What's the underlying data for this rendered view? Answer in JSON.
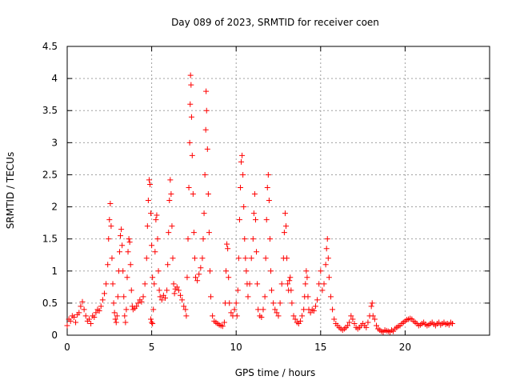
{
  "chart_data": {
    "type": "scatter",
    "title": "Day 089 of 2023, SRMTID for receiver coen",
    "xlabel": "GPS time / hours",
    "ylabel": "SRMTID / TECUs",
    "xlim": [
      0,
      25
    ],
    "ylim": [
      0,
      4.5
    ],
    "xticks": [
      0,
      5,
      10,
      15,
      20
    ],
    "yticks": [
      0,
      0.5,
      1,
      1.5,
      2,
      2.5,
      3,
      3.5,
      4,
      4.5
    ],
    "xtick_labels": [
      "0",
      "5",
      "10",
      "15",
      "20"
    ],
    "ytick_labels": [
      "0",
      "0.5",
      "1",
      "1.5",
      "2",
      "2.5",
      "3",
      "3.5",
      "4",
      "4.5"
    ],
    "grid": true,
    "marker": "+",
    "color": "#ff0000",
    "series": [
      {
        "name": "SRMTID",
        "points": [
          [
            0.0,
            0.15
          ],
          [
            0.1,
            0.25
          ],
          [
            0.2,
            0.22
          ],
          [
            0.3,
            0.3
          ],
          [
            0.4,
            0.28
          ],
          [
            0.5,
            0.2
          ],
          [
            0.6,
            0.32
          ],
          [
            0.7,
            0.35
          ],
          [
            0.8,
            0.45
          ],
          [
            0.9,
            0.52
          ],
          [
            1.0,
            0.4
          ],
          [
            1.1,
            0.3
          ],
          [
            1.2,
            0.22
          ],
          [
            1.3,
            0.25
          ],
          [
            1.4,
            0.18
          ],
          [
            1.5,
            0.3
          ],
          [
            1.6,
            0.28
          ],
          [
            1.7,
            0.35
          ],
          [
            1.8,
            0.4
          ],
          [
            1.9,
            0.38
          ],
          [
            2.0,
            0.45
          ],
          [
            2.1,
            0.55
          ],
          [
            2.2,
            0.65
          ],
          [
            2.3,
            0.8
          ],
          [
            2.4,
            1.1
          ],
          [
            2.45,
            1.5
          ],
          [
            2.5,
            1.8
          ],
          [
            2.55,
            2.05
          ],
          [
            2.6,
            1.7
          ],
          [
            2.65,
            1.2
          ],
          [
            2.7,
            0.8
          ],
          [
            2.75,
            0.5
          ],
          [
            2.8,
            0.35
          ],
          [
            2.85,
            0.25
          ],
          [
            2.9,
            0.2
          ],
          [
            2.95,
            0.3
          ],
          [
            3.0,
            0.6
          ],
          [
            3.05,
            1.0
          ],
          [
            3.1,
            1.3
          ],
          [
            3.15,
            1.55
          ],
          [
            3.2,
            1.65
          ],
          [
            3.25,
            1.4
          ],
          [
            3.3,
            1.0
          ],
          [
            3.35,
            0.6
          ],
          [
            3.4,
            0.3
          ],
          [
            3.45,
            0.2
          ],
          [
            3.5,
            0.4
          ],
          [
            3.55,
            0.9
          ],
          [
            3.6,
            1.3
          ],
          [
            3.65,
            1.5
          ],
          [
            3.7,
            1.45
          ],
          [
            3.75,
            1.1
          ],
          [
            3.8,
            0.7
          ],
          [
            3.85,
            0.45
          ],
          [
            3.9,
            0.4
          ],
          [
            4.0,
            0.42
          ],
          [
            4.1,
            0.45
          ],
          [
            4.2,
            0.5
          ],
          [
            4.3,
            0.55
          ],
          [
            4.4,
            0.52
          ],
          [
            4.5,
            0.6
          ],
          [
            4.6,
            0.8
          ],
          [
            4.7,
            1.2
          ],
          [
            4.75,
            1.7
          ],
          [
            4.8,
            2.1
          ],
          [
            4.85,
            2.42
          ],
          [
            4.9,
            2.35
          ],
          [
            4.95,
            1.9
          ],
          [
            5.0,
            1.4
          ],
          [
            5.05,
            0.9
          ],
          [
            5.1,
            0.4
          ],
          [
            4.95,
            0.25
          ],
          [
            5.0,
            0.2
          ],
          [
            5.05,
            0.18
          ],
          [
            5.15,
            0.8
          ],
          [
            5.2,
            1.3
          ],
          [
            5.25,
            1.8
          ],
          [
            5.3,
            1.87
          ],
          [
            5.35,
            1.5
          ],
          [
            5.4,
            1.0
          ],
          [
            5.45,
            0.7
          ],
          [
            5.5,
            0.6
          ],
          [
            5.6,
            0.55
          ],
          [
            5.7,
            0.62
          ],
          [
            5.8,
            0.58
          ],
          [
            5.9,
            0.7
          ],
          [
            5.95,
            1.1
          ],
          [
            6.0,
            1.6
          ],
          [
            6.05,
            2.1
          ],
          [
            6.1,
            2.42
          ],
          [
            6.15,
            2.2
          ],
          [
            6.2,
            1.7
          ],
          [
            6.25,
            1.2
          ],
          [
            6.3,
            0.8
          ],
          [
            6.35,
            0.65
          ],
          [
            6.4,
            0.72
          ],
          [
            6.5,
            0.75
          ],
          [
            6.6,
            0.7
          ],
          [
            6.7,
            0.62
          ],
          [
            6.8,
            0.55
          ],
          [
            6.9,
            0.45
          ],
          [
            7.0,
            0.4
          ],
          [
            7.05,
            0.3
          ],
          [
            7.1,
            0.9
          ],
          [
            7.15,
            1.5
          ],
          [
            7.2,
            2.3
          ],
          [
            7.25,
            3.0
          ],
          [
            7.28,
            3.6
          ],
          [
            7.3,
            4.05
          ],
          [
            7.33,
            3.9
          ],
          [
            7.36,
            3.4
          ],
          [
            7.4,
            2.8
          ],
          [
            7.45,
            2.2
          ],
          [
            7.5,
            1.6
          ],
          [
            7.55,
            1.2
          ],
          [
            7.6,
            0.9
          ],
          [
            7.7,
            0.85
          ],
          [
            7.8,
            0.95
          ],
          [
            7.9,
            1.05
          ],
          [
            8.0,
            1.2
          ],
          [
            8.05,
            1.5
          ],
          [
            8.1,
            1.9
          ],
          [
            8.15,
            2.5
          ],
          [
            8.2,
            3.2
          ],
          [
            8.22,
            3.8
          ],
          [
            8.25,
            3.5
          ],
          [
            8.3,
            2.9
          ],
          [
            8.35,
            2.2
          ],
          [
            8.4,
            1.6
          ],
          [
            8.45,
            1.0
          ],
          [
            8.5,
            0.6
          ],
          [
            8.6,
            0.3
          ],
          [
            8.7,
            0.22
          ],
          [
            8.8,
            0.2
          ],
          [
            8.9,
            0.18
          ],
          [
            9.0,
            0.16
          ],
          [
            9.1,
            0.15
          ],
          [
            9.2,
            0.14
          ],
          [
            9.3,
            0.2
          ],
          [
            9.35,
            0.5
          ],
          [
            9.4,
            1.0
          ],
          [
            9.45,
            1.42
          ],
          [
            9.5,
            1.35
          ],
          [
            9.55,
            0.9
          ],
          [
            9.6,
            0.5
          ],
          [
            9.7,
            0.35
          ],
          [
            9.8,
            0.3
          ],
          [
            9.9,
            0.4
          ],
          [
            10.0,
            0.5
          ],
          [
            10.05,
            0.3
          ],
          [
            10.1,
            0.7
          ],
          [
            10.15,
            1.2
          ],
          [
            10.2,
            1.8
          ],
          [
            10.25,
            2.3
          ],
          [
            10.3,
            2.7
          ],
          [
            10.35,
            2.8
          ],
          [
            10.4,
            2.5
          ],
          [
            10.45,
            2.0
          ],
          [
            10.5,
            1.5
          ],
          [
            10.55,
            1.2
          ],
          [
            10.6,
            1.0
          ],
          [
            10.65,
            0.8
          ],
          [
            10.7,
            0.6
          ],
          [
            10.8,
            0.8
          ],
          [
            10.9,
            1.2
          ],
          [
            11.0,
            1.5
          ],
          [
            11.05,
            1.9
          ],
          [
            11.1,
            2.2
          ],
          [
            11.15,
            1.8
          ],
          [
            11.2,
            1.3
          ],
          [
            11.25,
            0.8
          ],
          [
            11.3,
            0.4
          ],
          [
            11.4,
            0.3
          ],
          [
            11.5,
            0.28
          ],
          [
            11.6,
            0.4
          ],
          [
            11.7,
            0.6
          ],
          [
            11.75,
            1.2
          ],
          [
            11.8,
            1.8
          ],
          [
            11.85,
            2.3
          ],
          [
            11.9,
            2.5
          ],
          [
            11.95,
            2.1
          ],
          [
            12.0,
            1.5
          ],
          [
            12.05,
            1.0
          ],
          [
            12.1,
            0.7
          ],
          [
            12.2,
            0.5
          ],
          [
            12.3,
            0.4
          ],
          [
            12.4,
            0.35
          ],
          [
            12.5,
            0.3
          ],
          [
            12.6,
            0.5
          ],
          [
            12.7,
            0.8
          ],
          [
            12.8,
            1.2
          ],
          [
            12.85,
            1.6
          ],
          [
            12.9,
            1.9
          ],
          [
            12.95,
            1.7
          ],
          [
            13.0,
            1.2
          ],
          [
            13.05,
            0.8
          ],
          [
            13.1,
            0.7
          ],
          [
            13.15,
            0.85
          ],
          [
            13.2,
            0.9
          ],
          [
            13.25,
            0.7
          ],
          [
            13.3,
            0.5
          ],
          [
            13.4,
            0.3
          ],
          [
            13.5,
            0.25
          ],
          [
            13.6,
            0.2
          ],
          [
            13.7,
            0.18
          ],
          [
            13.8,
            0.22
          ],
          [
            13.9,
            0.3
          ],
          [
            14.0,
            0.4
          ],
          [
            14.05,
            0.6
          ],
          [
            14.1,
            0.8
          ],
          [
            14.15,
            1.0
          ],
          [
            14.2,
            0.9
          ],
          [
            14.25,
            0.6
          ],
          [
            14.3,
            0.4
          ],
          [
            14.4,
            0.35
          ],
          [
            14.5,
            0.4
          ],
          [
            14.6,
            0.38
          ],
          [
            14.7,
            0.45
          ],
          [
            14.8,
            0.55
          ],
          [
            14.9,
            0.8
          ],
          [
            15.0,
            1.0
          ],
          [
            15.1,
            0.7
          ],
          [
            15.2,
            0.8
          ],
          [
            15.3,
            1.1
          ],
          [
            15.35,
            1.35
          ],
          [
            15.4,
            1.5
          ],
          [
            15.45,
            1.2
          ],
          [
            15.5,
            0.9
          ],
          [
            15.6,
            0.6
          ],
          [
            15.7,
            0.4
          ],
          [
            15.8,
            0.25
          ],
          [
            15.9,
            0.18
          ],
          [
            16.0,
            0.15
          ],
          [
            16.1,
            0.12
          ],
          [
            16.2,
            0.1
          ],
          [
            16.3,
            0.08
          ],
          [
            16.4,
            0.1
          ],
          [
            16.5,
            0.12
          ],
          [
            16.6,
            0.15
          ],
          [
            16.7,
            0.2
          ],
          [
            16.8,
            0.3
          ],
          [
            16.9,
            0.25
          ],
          [
            17.0,
            0.18
          ],
          [
            17.1,
            0.12
          ],
          [
            17.2,
            0.1
          ],
          [
            17.3,
            0.12
          ],
          [
            17.4,
            0.15
          ],
          [
            17.5,
            0.18
          ],
          [
            17.6,
            0.15
          ],
          [
            17.7,
            0.12
          ],
          [
            17.8,
            0.2
          ],
          [
            17.9,
            0.3
          ],
          [
            18.0,
            0.45
          ],
          [
            18.05,
            0.5
          ],
          [
            18.1,
            0.3
          ],
          [
            18.2,
            0.25
          ],
          [
            18.3,
            0.15
          ],
          [
            18.4,
            0.1
          ],
          [
            18.5,
            0.08
          ],
          [
            18.6,
            0.06
          ],
          [
            18.7,
            0.05
          ],
          [
            18.8,
            0.08
          ],
          [
            18.9,
            0.07
          ],
          [
            19.0,
            0.06
          ],
          [
            19.1,
            0.05
          ],
          [
            19.2,
            0.08
          ],
          [
            19.3,
            0.06
          ],
          [
            19.4,
            0.1
          ],
          [
            19.5,
            0.12
          ],
          [
            19.6,
            0.14
          ],
          [
            19.7,
            0.15
          ],
          [
            19.8,
            0.18
          ],
          [
            19.9,
            0.2
          ],
          [
            20.0,
            0.22
          ],
          [
            20.1,
            0.24
          ],
          [
            20.2,
            0.25
          ],
          [
            20.3,
            0.26
          ],
          [
            20.4,
            0.25
          ],
          [
            20.5,
            0.22
          ],
          [
            20.6,
            0.2
          ],
          [
            20.7,
            0.18
          ],
          [
            20.8,
            0.15
          ],
          [
            20.9,
            0.16
          ],
          [
            21.0,
            0.18
          ],
          [
            21.1,
            0.2
          ],
          [
            21.2,
            0.17
          ],
          [
            21.3,
            0.15
          ],
          [
            21.4,
            0.16
          ],
          [
            21.5,
            0.18
          ],
          [
            21.6,
            0.2
          ],
          [
            21.7,
            0.17
          ],
          [
            21.8,
            0.15
          ],
          [
            21.9,
            0.18
          ],
          [
            22.0,
            0.2
          ],
          [
            22.1,
            0.16
          ],
          [
            22.2,
            0.18
          ],
          [
            22.3,
            0.2
          ],
          [
            22.4,
            0.17
          ],
          [
            22.5,
            0.18
          ],
          [
            22.6,
            0.16
          ],
          [
            22.7,
            0.2
          ],
          [
            22.8,
            0.18
          ]
        ]
      }
    ]
  }
}
